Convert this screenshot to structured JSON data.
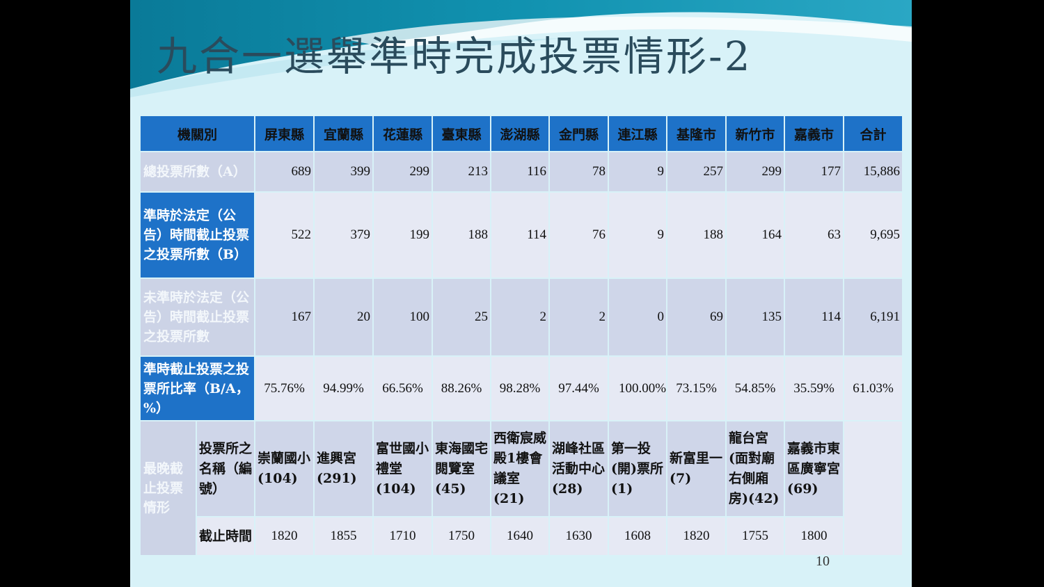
{
  "slide": {
    "title": "九合一選舉準時完成投票情形-2",
    "page_number": "10"
  },
  "table": {
    "header_label": "機關別",
    "columns": [
      "屏東縣",
      "宜蘭縣",
      "花蓮縣",
      "臺東縣",
      "澎湖縣",
      "金門縣",
      "連江縣",
      "基隆市",
      "新竹市",
      "嘉義市",
      "合計"
    ],
    "rows": [
      {
        "label": "總投票所數（A）",
        "values": [
          "689",
          "399",
          "299",
          "213",
          "116",
          "78",
          "9",
          "257",
          "299",
          "177",
          "15,886"
        ]
      },
      {
        "label": "準時於法定（公告）時間截止投票之投票所數（B）",
        "values": [
          "522",
          "379",
          "199",
          "188",
          "114",
          "76",
          "9",
          "188",
          "164",
          "63",
          "9,695"
        ]
      },
      {
        "label": "未準時於法定（公告）時間截止投票之投票所數",
        "values": [
          "167",
          "20",
          "100",
          "25",
          "2",
          "2",
          "0",
          "69",
          "135",
          "114",
          "6,191"
        ]
      },
      {
        "label": "準時截止投票之投票所比率（B/A，%）",
        "values": [
          "75.76%",
          "94.99%",
          "66.56%",
          "88.26%",
          "98.28%",
          "97.44%",
          "100.00%",
          "73.15%",
          "54.85%",
          "35.59%",
          "61.03%"
        ]
      }
    ],
    "latest_section_label": "最晚截止投票情形",
    "station_name_label": "投票所之名稱（編號）",
    "station_names": [
      "崇蘭國小(104)",
      "進興宮(291)",
      "富世國小禮堂(104)",
      "東海國宅閱覽室(45)",
      "西衛宸威殿1樓會議室(21)",
      "湖峰社區活動中心(28)",
      "第一投(開)票所(1)",
      "新富里一(7)",
      "龍台宮(面對廟右側廂房)(42)",
      "嘉義市東區廣寧宮(69)"
    ],
    "close_time_label": "截止時間",
    "close_times": [
      "1820",
      "1855",
      "1710",
      "1750",
      "1640",
      "1630",
      "1608",
      "1820",
      "1755",
      "1800"
    ]
  },
  "colors": {
    "header_blue": "#1e72c8",
    "cell_light": "#cfd6e9",
    "cell_pale": "#e6e9f4",
    "slide_bg": "#d8f2f8",
    "wave_teal": "#0e8aa6"
  }
}
